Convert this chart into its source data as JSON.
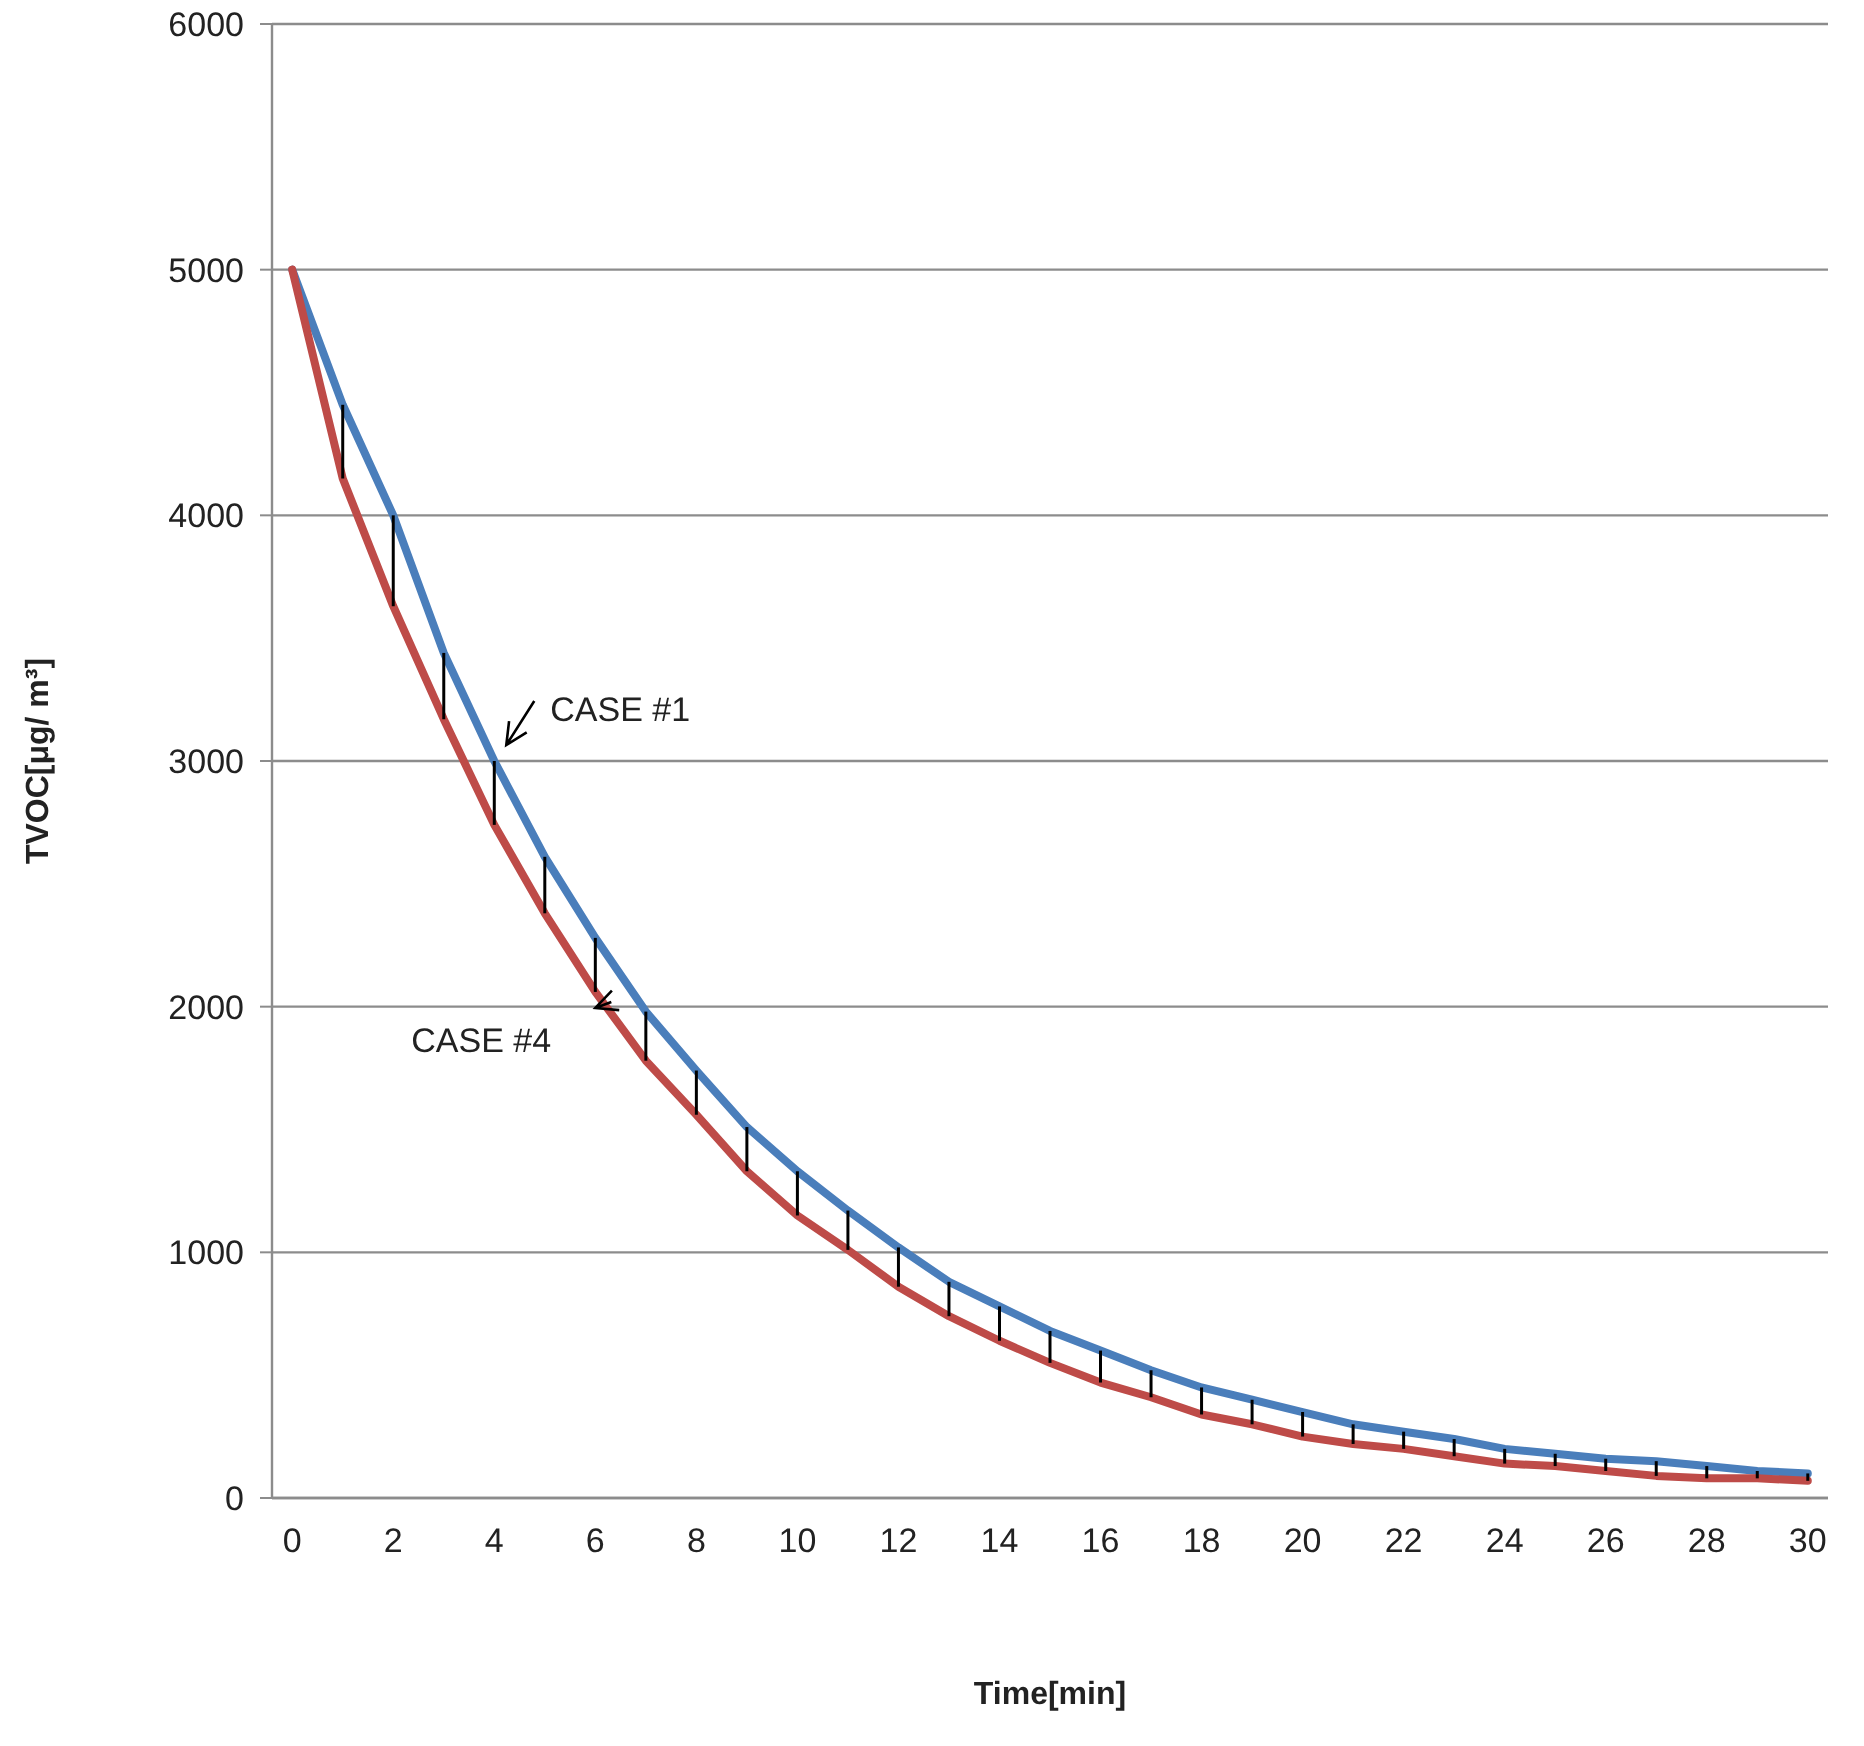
{
  "chart_data": {
    "type": "line",
    "xlabel": "Time[min]",
    "ylabel": "TVOC[μg/ m³]",
    "x": [
      0,
      1,
      2,
      3,
      4,
      5,
      6,
      7,
      8,
      9,
      10,
      11,
      12,
      13,
      14,
      15,
      16,
      17,
      18,
      19,
      20,
      21,
      22,
      23,
      24,
      25,
      26,
      27,
      28,
      29,
      30
    ],
    "series": [
      {
        "name": "CASE #1",
        "color": "#4a7ebb",
        "values": [
          5000,
          4450,
          4000,
          3440,
          3000,
          2610,
          2280,
          1980,
          1740,
          1510,
          1330,
          1170,
          1020,
          880,
          780,
          680,
          600,
          520,
          450,
          400,
          350,
          300,
          270,
          240,
          200,
          180,
          160,
          150,
          130,
          110,
          100
        ],
        "errors": [
          null,
          [
            4150,
            4450
          ],
          [
            3630,
            4000
          ],
          [
            3170,
            3440
          ],
          [
            2740,
            3000
          ],
          [
            2380,
            2610
          ],
          [
            2060,
            2280
          ],
          [
            1780,
            1980
          ],
          [
            1560,
            1740
          ],
          [
            1330,
            1510
          ],
          [
            1150,
            1330
          ],
          [
            1010,
            1170
          ],
          [
            860,
            1020
          ],
          [
            740,
            880
          ],
          [
            640,
            780
          ],
          [
            550,
            680
          ],
          [
            470,
            600
          ],
          [
            410,
            520
          ],
          [
            340,
            450
          ],
          [
            300,
            400
          ],
          [
            250,
            350
          ],
          [
            220,
            300
          ],
          [
            200,
            270
          ],
          [
            170,
            240
          ],
          [
            140,
            200
          ],
          [
            130,
            180
          ],
          [
            110,
            160
          ],
          [
            90,
            150
          ],
          [
            80,
            130
          ],
          [
            80,
            110
          ],
          [
            70,
            100
          ]
        ]
      },
      {
        "name": "CASE #4",
        "color": "#be4b48",
        "values": [
          5000,
          4150,
          3630,
          3170,
          2740,
          2380,
          2060,
          1780,
          1560,
          1330,
          1150,
          1010,
          860,
          740,
          640,
          550,
          470,
          410,
          340,
          300,
          250,
          220,
          200,
          170,
          140,
          130,
          110,
          90,
          80,
          80,
          70
        ]
      }
    ],
    "xlim": [
      -0.4,
      30.4
    ],
    "xticks": [
      0,
      2,
      4,
      6,
      8,
      10,
      12,
      14,
      16,
      18,
      20,
      22,
      24,
      26,
      28,
      30
    ],
    "ylim": [
      0,
      6000
    ],
    "yticks": [
      0,
      1000,
      2000,
      3000,
      4000,
      5000,
      6000
    ],
    "grid": "y",
    "marker": "none",
    "line_style": "solid"
  }
}
